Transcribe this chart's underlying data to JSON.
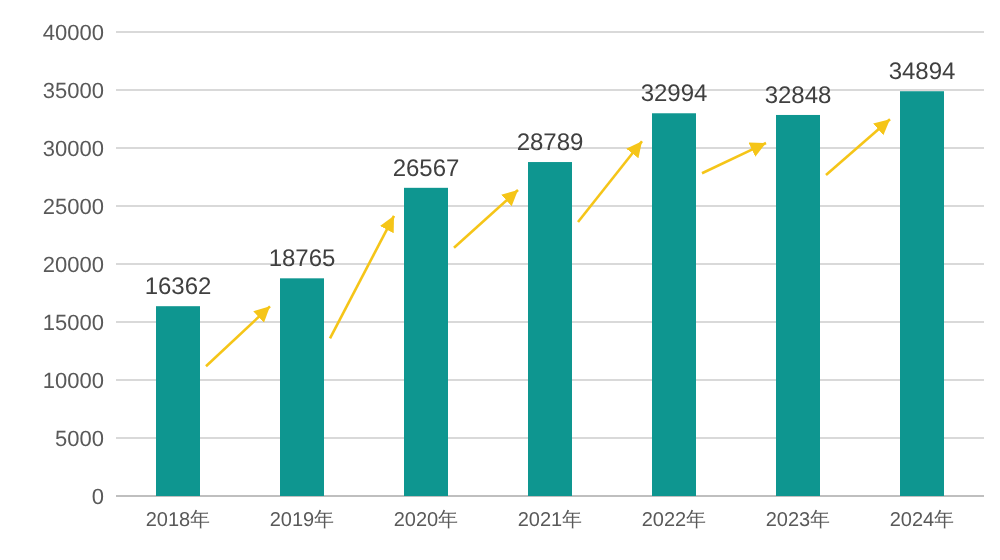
{
  "chart_data": {
    "type": "bar",
    "categories": [
      "2018年",
      "2019年",
      "2020年",
      "2021年",
      "2022年",
      "2023年",
      "2024年"
    ],
    "values": [
      16362,
      18765,
      26567,
      28789,
      32994,
      32848,
      34894
    ],
    "color": "#0e9690",
    "ylim": [
      0,
      40000
    ],
    "yticks": [
      0,
      5000,
      10000,
      15000,
      20000,
      25000,
      30000,
      35000,
      40000
    ],
    "grid": "y",
    "data_labels": true
  }
}
